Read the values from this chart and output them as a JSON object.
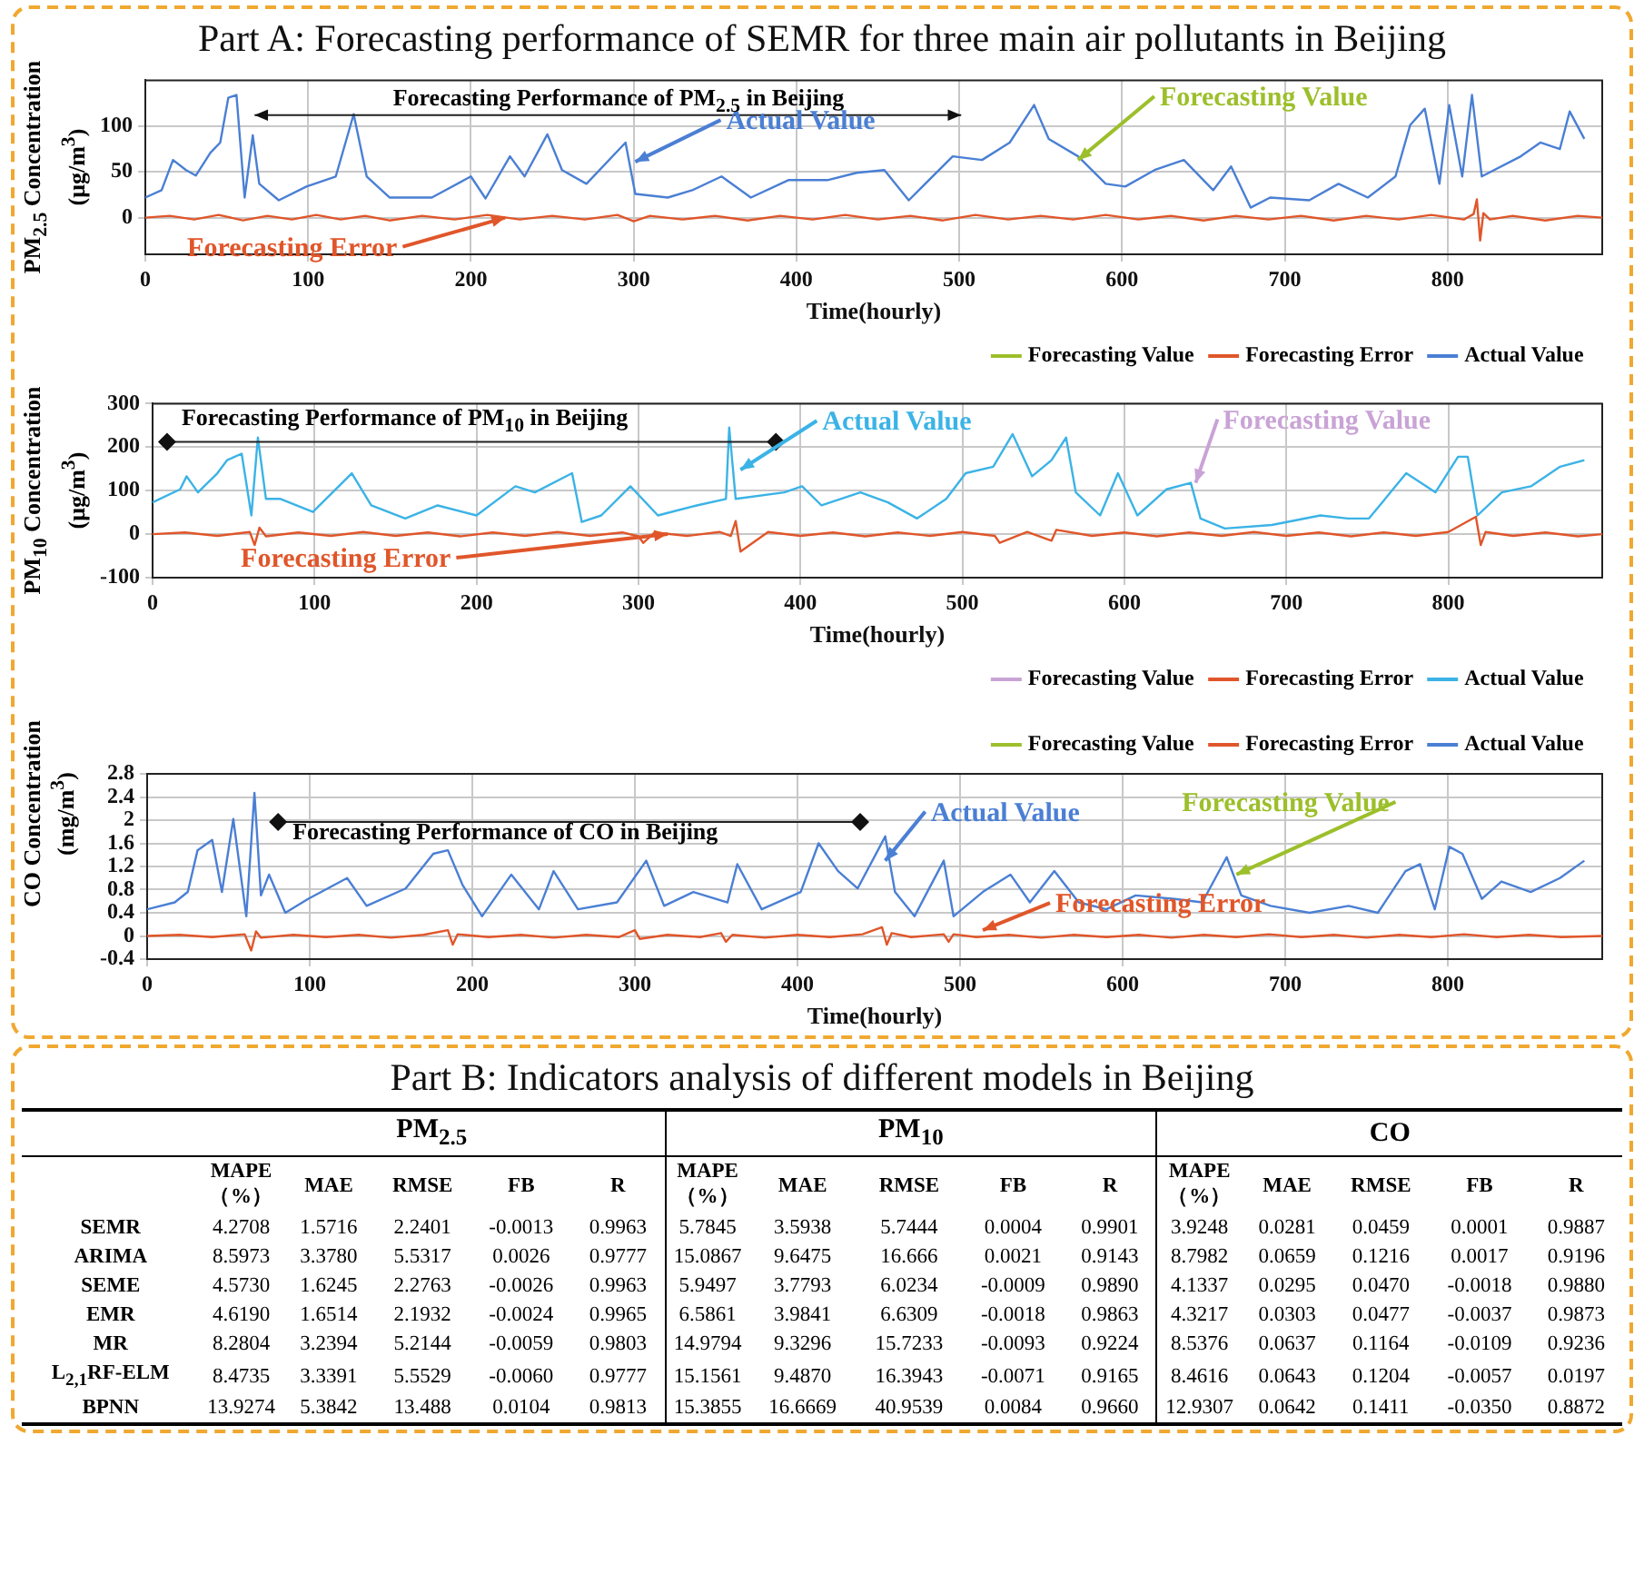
{
  "chart_data": [
    {
      "type": "line",
      "title": "Part A: Forecasting performance of SEMR for three main air pollutants in Beijing",
      "xlabel": "Time(hourly)",
      "ylabel": "PM$_{2.5}$ Concentration (μg/m$^{3}$)",
      "xlim": [
        0,
        895
      ],
      "xticks": [
        0,
        100,
        200,
        300,
        400,
        500,
        600,
        700,
        800
      ],
      "ylim": [
        -40,
        150
      ],
      "yticks": [
        0,
        50,
        100
      ],
      "grid": true,
      "legend": "bottom right",
      "annotations": [
        "Forecasting Performance of PM$_{2.5}$ in Beijing",
        {
          "text": "Actual Value",
          "x": 301,
          "y": 61
        },
        {
          "text": "Forecasting Value",
          "x": 573,
          "y": 63
        },
        {
          "text": "Forecasting Error",
          "x": 221,
          "y": 0
        }
      ],
      "series": [
        {
          "name": "Forecasting Value",
          "color": "#9cbf2b"
        },
        {
          "name": "Forecasting Error",
          "color": "#e0562a",
          "x": [
            0,
            15,
            30,
            45,
            60,
            75,
            90,
            105,
            120,
            135,
            150,
            170,
            190,
            210,
            230,
            250,
            270,
            290,
            300,
            310,
            330,
            350,
            370,
            390,
            410,
            430,
            450,
            470,
            490,
            510,
            530,
            550,
            570,
            590,
            610,
            630,
            650,
            670,
            690,
            710,
            730,
            750,
            770,
            790,
            810,
            816,
            818,
            820,
            822,
            826,
            840,
            860,
            880,
            895
          ],
          "values": [
            0,
            2,
            -2,
            3,
            -3,
            2,
            -2,
            3,
            -2,
            2,
            -3,
            2,
            -2,
            3,
            -2,
            2,
            -2,
            3,
            -4,
            2,
            -2,
            2,
            -3,
            2,
            -2,
            3,
            -2,
            2,
            -3,
            3,
            -2,
            2,
            -2,
            3,
            -2,
            2,
            -3,
            2,
            -2,
            2,
            -3,
            2,
            -2,
            3,
            -2,
            4,
            20,
            -25,
            5,
            -2,
            2,
            -3,
            2,
            0
          ]
        },
        {
          "name": "Actual Value",
          "color": "#4a7fd4",
          "x": [
            0,
            10,
            17,
            25,
            31,
            40,
            46,
            51,
            56,
            61,
            66,
            70,
            82,
            99,
            117,
            128,
            136,
            150,
            176,
            200,
            209,
            224,
            233,
            247,
            256,
            271,
            295,
            301,
            321,
            336,
            354,
            372,
            395,
            419,
            437,
            454,
            469,
            496,
            514,
            531,
            546,
            555,
            573,
            590,
            602,
            620,
            638,
            656,
            667,
            679,
            691,
            715,
            733,
            751,
            768,
            777,
            786,
            795,
            801,
            809,
            815,
            821,
            845,
            857,
            869,
            875,
            884
          ],
          "values": [
            22,
            30,
            63,
            52,
            46,
            71,
            82,
            131,
            134,
            22,
            90,
            37,
            19,
            34,
            45,
            113,
            45,
            22,
            22,
            45,
            21,
            67,
            45,
            91,
            52,
            37,
            82,
            26,
            22,
            30,
            45,
            22,
            41,
            41,
            49,
            52,
            19,
            67,
            63,
            82,
            123,
            86,
            67,
            37,
            34,
            52,
            63,
            30,
            56,
            11,
            22,
            19,
            37,
            22,
            45,
            101,
            119,
            37,
            123,
            45,
            134,
            45,
            67,
            82,
            75,
            116,
            86
          ]
        }
      ]
    },
    {
      "type": "line",
      "xlabel": "Time(hourly)",
      "ylabel": "PM$_{10}$ Concentration (μg/m$^{3}$)",
      "xlim": [
        0,
        895
      ],
      "xticks": [
        0,
        100,
        200,
        300,
        400,
        500,
        600,
        700,
        800
      ],
      "ylim": [
        -100,
        300
      ],
      "yticks": [
        -100,
        0,
        100,
        200,
        300
      ],
      "grid": true,
      "legend": "bottom right",
      "annotations": [
        "Forecasting Performance of PM$_{10}$ in Beijing",
        {
          "text": "Actual Value",
          "x": 363,
          "y": 148
        },
        {
          "text": "Forecasting Value",
          "x": 644,
          "y": 118
        },
        {
          "text": "Forecasting Error",
          "x": 318,
          "y": 0
        }
      ],
      "series": [
        {
          "name": "Forecasting Value",
          "color": "#c9a3d6"
        },
        {
          "name": "Forecasting Error",
          "color": "#e0562a",
          "x": [
            0,
            20,
            40,
            60,
            63,
            66,
            70,
            90,
            110,
            130,
            150,
            170,
            190,
            210,
            230,
            250,
            270,
            290,
            300,
            303,
            310,
            330,
            350,
            357,
            360,
            363,
            380,
            400,
            420,
            440,
            460,
            480,
            500,
            520,
            523,
            540,
            555,
            558,
            580,
            600,
            620,
            640,
            660,
            680,
            700,
            720,
            740,
            760,
            780,
            800,
            817,
            820,
            823,
            840,
            860,
            880,
            895
          ],
          "values": [
            0,
            4,
            -4,
            5,
            -25,
            15,
            -5,
            4,
            -4,
            5,
            -4,
            4,
            -5,
            4,
            -4,
            5,
            -4,
            4,
            -5,
            -20,
            4,
            -4,
            5,
            -4,
            30,
            -40,
            5,
            -4,
            4,
            -5,
            4,
            -4,
            5,
            -4,
            -20,
            5,
            -15,
            10,
            -4,
            4,
            -5,
            4,
            -4,
            5,
            -4,
            4,
            -5,
            4,
            -4,
            5,
            40,
            -25,
            5,
            -4,
            4,
            -5,
            0
          ]
        },
        {
          "name": "Actual Value",
          "color": "#3bb3e6",
          "x": [
            0,
            17,
            21,
            28,
            40,
            46,
            55,
            61,
            65,
            70,
            79,
            99,
            123,
            135,
            156,
            176,
            200,
            224,
            236,
            259,
            265,
            277,
            295,
            312,
            336,
            354,
            356,
            360,
            390,
            401,
            413,
            437,
            454,
            472,
            490,
            502,
            519,
            531,
            543,
            555,
            564,
            570,
            585,
            596,
            608,
            626,
            641,
            647,
            662,
            691,
            721,
            738,
            751,
            774,
            792,
            806,
            812,
            818,
            833,
            851,
            869,
            884
          ],
          "values": [
            73,
            103,
            133,
            96,
            140,
            170,
            185,
            43,
            222,
            81,
            81,
            51,
            140,
            66,
            36,
            66,
            43,
            110,
            96,
            140,
            28,
            43,
            110,
            43,
            66,
            81,
            245,
            81,
            96,
            110,
            66,
            96,
            73,
            36,
            81,
            140,
            155,
            230,
            133,
            170,
            222,
            96,
            43,
            140,
            43,
            103,
            118,
            36,
            13,
            21,
            43,
            36,
            36,
            140,
            96,
            178,
            178,
            43,
            96,
            110,
            155,
            170
          ]
        }
      ]
    },
    {
      "type": "line",
      "xlabel": "Time(hourly)",
      "ylabel": "CO Concentration (mg/m$^{3}$)",
      "xlim": [
        0,
        895
      ],
      "xticks": [
        0,
        100,
        200,
        300,
        400,
        500,
        600,
        700,
        800
      ],
      "ylim": [
        -0.4,
        2.8
      ],
      "yticks": [
        -0.4,
        0,
        0.4,
        0.8,
        1.2,
        1.6,
        2,
        2.4,
        2.8
      ],
      "grid": true,
      "legend": "top right",
      "annotations": [
        "Forecasting Performance of CO  in Beijing",
        {
          "text": "Actual Value",
          "x": 454,
          "y": 1.3
        },
        {
          "text": "Forecasting Value",
          "x": 670,
          "y": 1.06
        },
        {
          "text": "Forecasting Error",
          "x": 514,
          "y": 0.1
        }
      ],
      "series": [
        {
          "name": "Forecasting Value",
          "color": "#9cbf2b"
        },
        {
          "name": "Forecasting Error",
          "color": "#e0562a",
          "x": [
            0,
            20,
            40,
            60,
            64,
            67,
            70,
            90,
            110,
            130,
            150,
            170,
            185,
            188,
            191,
            210,
            230,
            250,
            270,
            290,
            300,
            303,
            320,
            340,
            353,
            356,
            360,
            380,
            400,
            420,
            440,
            452,
            455,
            458,
            470,
            490,
            493,
            496,
            510,
            530,
            550,
            570,
            590,
            610,
            630,
            650,
            670,
            690,
            710,
            730,
            750,
            770,
            790,
            810,
            830,
            850,
            870,
            895
          ],
          "values": [
            0,
            0.02,
            -0.02,
            0.03,
            -0.25,
            0.08,
            -0.03,
            0.02,
            -0.02,
            0.02,
            -0.03,
            0.02,
            0.1,
            -0.15,
            0.03,
            -0.02,
            0.02,
            -0.03,
            0.02,
            -0.02,
            0.1,
            -0.05,
            0.02,
            -0.02,
            0.05,
            -0.1,
            0.02,
            -0.03,
            0.02,
            -0.02,
            0.03,
            0.15,
            -0.15,
            0.05,
            -0.02,
            0.03,
            -0.1,
            0.03,
            -0.02,
            0.02,
            -0.03,
            0.02,
            -0.02,
            0.02,
            -0.03,
            0.02,
            -0.02,
            0.03,
            -0.02,
            0.02,
            -0.03,
            0.02,
            -0.02,
            0.03,
            -0.02,
            0.02,
            -0.02,
            0
          ]
        },
        {
          "name": "Actual Value",
          "color": "#4a7fd4",
          "x": [
            0,
            17,
            25,
            31,
            40,
            46,
            53,
            61,
            66,
            70,
            75,
            85,
            99,
            123,
            135,
            159,
            176,
            185,
            194,
            206,
            224,
            241,
            250,
            265,
            289,
            307,
            318,
            336,
            357,
            363,
            378,
            402,
            413,
            425,
            437,
            454,
            460,
            472,
            490,
            496,
            514,
            531,
            543,
            558,
            573,
            590,
            608,
            632,
            649,
            664,
            673,
            691,
            715,
            739,
            757,
            774,
            783,
            792,
            801,
            809,
            821,
            833,
            851,
            869,
            884
          ],
          "values": [
            0.46,
            0.58,
            0.76,
            1.48,
            1.66,
            0.76,
            2.02,
            0.34,
            2.47,
            0.7,
            1.06,
            0.4,
            0.64,
            1.0,
            0.52,
            0.82,
            1.42,
            1.48,
            0.88,
            0.34,
            1.06,
            0.46,
            1.12,
            0.46,
            0.58,
            1.3,
            0.52,
            0.76,
            0.58,
            1.24,
            0.46,
            0.76,
            1.6,
            1.12,
            0.82,
            1.72,
            0.76,
            0.34,
            1.3,
            0.34,
            0.76,
            1.06,
            0.58,
            1.12,
            0.58,
            0.46,
            0.7,
            0.64,
            0.58,
            1.36,
            0.7,
            0.52,
            0.4,
            0.52,
            0.4,
            1.12,
            1.24,
            0.46,
            1.54,
            1.42,
            0.64,
            0.94,
            0.76,
            1.0,
            1.3
          ]
        }
      ]
    },
    {
      "type": "other",
      "title": "Part B: Indicators analysis of different models in Beijing",
      "categories": [
        "SEMR",
        "ARIMA",
        "SEME",
        "EMR",
        "MR",
        "L$_{2,1}$RF-ELM",
        "BPNN"
      ],
      "annotations": [
        "PM$_{2.5}$",
        "PM$_{10}$",
        "CO"
      ],
      "series": [
        {
          "name": "MAPE（%）",
          "values": [
            4.2708,
            8.5973,
            4.573,
            4.619,
            8.2804,
            8.4735,
            13.9274
          ],
          "value_labels": [
            "4.2708",
            "8.5973",
            "4.5730",
            "4.6190",
            "8.2804",
            "8.4735",
            "13.9274"
          ]
        },
        {
          "name": "MAE",
          "values": [
            1.5716,
            3.378,
            1.6245,
            1.6514,
            3.2394,
            3.3391,
            5.3842
          ],
          "value_labels": [
            "1.5716",
            "3.3780",
            "1.6245",
            "1.6514",
            "3.2394",
            "3.3391",
            "5.3842"
          ]
        },
        {
          "name": "RMSE",
          "values": [
            2.2401,
            5.5317,
            2.2763,
            2.1932,
            5.2144,
            5.5529,
            13.488
          ],
          "value_labels": [
            "2.2401",
            "5.5317",
            "2.2763",
            "2.1932",
            "5.2144",
            "5.5529",
            "13.488"
          ]
        },
        {
          "name": "FB",
          "values": [
            -0.0013,
            0.0026,
            -0.0026,
            -0.0024,
            -0.0059,
            -0.006,
            0.0104
          ],
          "value_labels": [
            "-0.0013",
            "0.0026",
            "-0.0026",
            "-0.0024",
            "-0.0059",
            "-0.0060",
            "0.0104"
          ]
        },
        {
          "name": "R",
          "values": [
            0.9963,
            0.9777,
            0.9963,
            0.9965,
            0.9803,
            0.9777,
            0.9813
          ],
          "value_labels": [
            "0.9963",
            "0.9777",
            "0.9963",
            "0.9965",
            "0.9803",
            "0.9777",
            "0.9813"
          ]
        },
        {
          "name": "MAPE（%）",
          "values": [
            5.7845,
            15.0867,
            5.9497,
            6.5861,
            14.9794,
            15.1561,
            15.3855
          ],
          "value_labels": [
            "5.7845",
            "15.0867",
            "5.9497",
            "6.5861",
            "14.9794",
            "15.1561",
            "15.3855"
          ]
        },
        {
          "name": "MAE",
          "values": [
            3.5938,
            9.6475,
            3.7793,
            3.9841,
            9.3296,
            9.487,
            16.6669
          ],
          "value_labels": [
            "3.5938",
            "9.6475",
            "3.7793",
            "3.9841",
            "9.3296",
            "9.4870",
            "16.6669"
          ]
        },
        {
          "name": "RMSE",
          "values": [
            5.7444,
            16.666,
            6.0234,
            6.6309,
            15.7233,
            16.3943,
            40.9539
          ],
          "value_labels": [
            "5.7444",
            "16.666",
            "6.0234",
            "6.6309",
            "15.7233",
            "16.3943",
            "40.9539"
          ]
        },
        {
          "name": "FB",
          "values": [
            0.0004,
            0.0021,
            -0.0009,
            -0.0018,
            -0.0093,
            -0.0071,
            0.0084
          ],
          "value_labels": [
            "0.0004",
            "0.0021",
            "-0.0009",
            "-0.0018",
            "-0.0093",
            "-0.0071",
            "0.0084"
          ]
        },
        {
          "name": "R",
          "values": [
            0.9901,
            0.9143,
            0.989,
            0.9863,
            0.9224,
            0.9165,
            0.966
          ],
          "value_labels": [
            "0.9901",
            "0.9143",
            "0.9890",
            "0.9863",
            "0.9224",
            "0.9165",
            "0.9660"
          ]
        },
        {
          "name": "MAPE（%）",
          "values": [
            3.9248,
            8.7982,
            4.1337,
            4.3217,
            8.5376,
            8.4616,
            12.9307
          ],
          "value_labels": [
            "3.9248",
            "8.7982",
            "4.1337",
            "4.3217",
            "8.5376",
            "8.4616",
            "12.9307"
          ]
        },
        {
          "name": "MAE",
          "values": [
            0.0281,
            0.0659,
            0.0295,
            0.0303,
            0.0637,
            0.0643,
            0.0642
          ],
          "value_labels": [
            "0.0281",
            "0.0659",
            "0.0295",
            "0.0303",
            "0.0637",
            "0.0643",
            "0.0642"
          ]
        },
        {
          "name": "RMSE",
          "values": [
            0.0459,
            0.1216,
            0.047,
            0.0477,
            0.1164,
            0.1204,
            0.1411
          ],
          "value_labels": [
            "0.0459",
            "0.1216",
            "0.0470",
            "0.0477",
            "0.1164",
            "0.1204",
            "0.1411"
          ]
        },
        {
          "name": "FB",
          "values": [
            0.0001,
            0.0017,
            -0.0018,
            -0.0037,
            -0.0109,
            -0.0057,
            -0.035
          ],
          "value_labels": [
            "0.0001",
            "0.0017",
            "-0.0018",
            "-0.0037",
            "-0.0109",
            "-0.0057",
            "-0.0350"
          ]
        },
        {
          "name": "R",
          "values": [
            0.9887,
            0.9196,
            0.988,
            0.9873,
            0.9236,
            0.0197,
            0.8872
          ],
          "value_labels": [
            "0.9887",
            "0.9196",
            "0.9880",
            "0.9873",
            "0.9236",
            "0.0197",
            "0.8872"
          ]
        }
      ]
    }
  ]
}
